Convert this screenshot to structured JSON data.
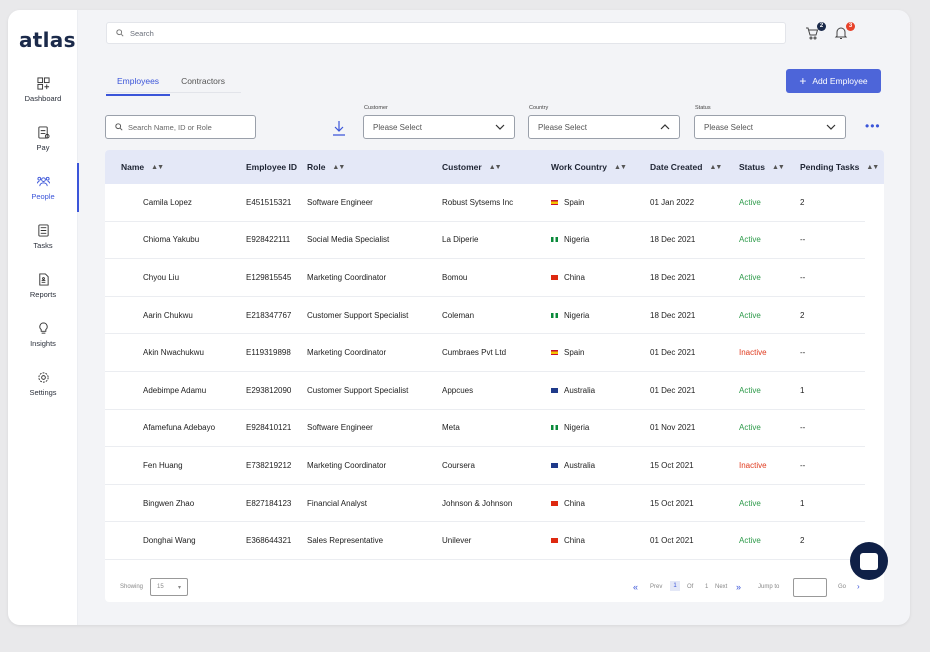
{
  "app": {
    "logo": "atlas"
  },
  "sidebar": {
    "items": [
      {
        "label": "Dashboard",
        "icon": "dashboard-icon",
        "active": false
      },
      {
        "label": "Pay",
        "icon": "pay-icon",
        "active": false
      },
      {
        "label": "People",
        "icon": "people-icon",
        "active": true
      },
      {
        "label": "Tasks",
        "icon": "tasks-icon",
        "active": false
      },
      {
        "label": "Reports",
        "icon": "reports-icon",
        "active": false
      },
      {
        "label": "Insights",
        "icon": "insights-icon",
        "active": false
      },
      {
        "label": "Settings",
        "icon": "settings-icon",
        "active": false
      }
    ]
  },
  "header": {
    "search_placeholder": "Search",
    "cart_badge": "2",
    "notification_badge": "3",
    "accent": "#3b55d9"
  },
  "tabs": [
    {
      "label": "Employees",
      "active": true
    },
    {
      "label": "Contractors",
      "active": false
    }
  ],
  "add_button": {
    "label": "Add Employee"
  },
  "filters": {
    "search_placeholder": "Search Name, ID or Role",
    "customer": {
      "label": "Customer",
      "value": "Please Select"
    },
    "country": {
      "label": "Country",
      "value": "Please Select"
    },
    "status": {
      "label": "Status",
      "value": "Please Select"
    }
  },
  "table": {
    "columns": [
      "Name",
      "Employee ID",
      "Role",
      "Customer",
      "Work Country",
      "Date Created",
      "Status",
      "Pending Tasks"
    ],
    "rows": [
      {
        "name": "Camila Lopez",
        "id": "E451515321",
        "role": "Software Engineer",
        "customer": "Robust Sytsems Inc",
        "country": "Spain",
        "date": "01 Jan 2022",
        "status": "Active",
        "tasks": "2"
      },
      {
        "name": "Chioma Yakubu",
        "id": "E928422111",
        "role": "Social Media Specialist",
        "customer": "La Diperie",
        "country": "Nigeria",
        "date": "18 Dec 2021",
        "status": "Active",
        "tasks": "--"
      },
      {
        "name": "Chyou Liu",
        "id": "E129815545",
        "role": "Marketing Coordinator",
        "customer": "Bomou",
        "country": "China",
        "date": "18 Dec 2021",
        "status": "Active",
        "tasks": "--"
      },
      {
        "name": "Aarin Chukwu",
        "id": "E218347767",
        "role": "Customer Support Specialist",
        "customer": "Coleman",
        "country": "Nigeria",
        "date": "18 Dec 2021",
        "status": "Active",
        "tasks": "2"
      },
      {
        "name": "Akin Nwachukwu",
        "id": "E119319898",
        "role": "Marketing Coordinator",
        "customer": "Cumbraes Pvt Ltd",
        "country": "Spain",
        "date": "01 Dec 2021",
        "status": "Inactive",
        "tasks": "--"
      },
      {
        "name": "Adebimpe Adamu",
        "id": "E293812090",
        "role": "Customer Support Specialist",
        "customer": "Appcues",
        "country": "Australia",
        "date": "01 Dec 2021",
        "status": "Active",
        "tasks": "1"
      },
      {
        "name": "Afamefuna Adebayo",
        "id": "E928410121",
        "role": "Software Engineer",
        "customer": "Meta",
        "country": "Nigeria",
        "date": "01 Nov 2021",
        "status": "Active",
        "tasks": "--"
      },
      {
        "name": "Fen Huang",
        "id": "E738219212",
        "role": "Marketing Coordinator",
        "customer": "Coursera",
        "country": "Australia",
        "date": "15 Oct 2021",
        "status": "Inactive",
        "tasks": "--"
      },
      {
        "name": "Bingwen Zhao",
        "id": "E827184123",
        "role": "Financial Analyst",
        "customer": "Johnson & Johnson",
        "country": "China",
        "date": "15 Oct 2021",
        "status": "Active",
        "tasks": "1"
      },
      {
        "name": "Donghai Wang",
        "id": "E368644321",
        "role": "Sales Representative",
        "customer": "Unilever",
        "country": "China",
        "date": "01 Oct 2021",
        "status": "Active",
        "tasks": "2"
      }
    ]
  },
  "pagination": {
    "showing_label": "Showing",
    "page_size": "15",
    "prev": "Prev",
    "current": "1",
    "of": "Of",
    "total": "1",
    "next": "Next",
    "jump_label": "Jump to",
    "go": "Go"
  }
}
